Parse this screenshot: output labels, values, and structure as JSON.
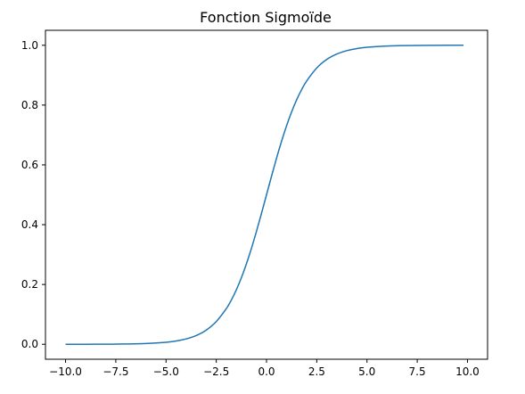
{
  "chart_data": {
    "type": "line",
    "title": "Fonction Sigmoïde",
    "xlabel": "",
    "ylabel": "",
    "xlim": [
      -11,
      11
    ],
    "ylim": [
      -0.05,
      1.05
    ],
    "grid": false,
    "x_ticks": [
      -10.0,
      -7.5,
      -5.0,
      -2.5,
      0.0,
      2.5,
      5.0,
      7.5,
      10.0
    ],
    "x_tick_labels": [
      "−10.0",
      "−7.5",
      "−5.0",
      "−2.5",
      "0.0",
      "2.5",
      "5.0",
      "7.5",
      "10.0"
    ],
    "y_ticks": [
      0.0,
      0.2,
      0.4,
      0.6,
      0.8,
      1.0
    ],
    "y_tick_labels": [
      "0.0",
      "0.2",
      "0.4",
      "0.6",
      "0.8",
      "1.0"
    ],
    "series": [
      {
        "color": "#1f77b4",
        "x": [
          -10,
          -9,
          -8,
          -7,
          -6,
          -5,
          -4.5,
          -4,
          -3.5,
          -3,
          -2.5,
          -2,
          -1.75,
          -1.5,
          -1.25,
          -1,
          -0.75,
          -0.5,
          -0.25,
          0,
          0.25,
          0.5,
          0.75,
          1,
          1.25,
          1.5,
          1.75,
          2,
          2.5,
          3,
          3.5,
          4,
          4.5,
          5,
          6,
          7,
          8,
          9,
          9.8
        ],
        "y": [
          0.0,
          0.0001,
          0.0003,
          0.0009,
          0.0025,
          0.0067,
          0.011,
          0.018,
          0.0293,
          0.0474,
          0.0759,
          0.1192,
          0.148,
          0.1824,
          0.2227,
          0.2689,
          0.3208,
          0.3775,
          0.4378,
          0.5,
          0.5622,
          0.6225,
          0.6792,
          0.7311,
          0.7773,
          0.8176,
          0.852,
          0.8808,
          0.9241,
          0.9526,
          0.9707,
          0.982,
          0.989,
          0.9933,
          0.9975,
          0.9991,
          0.9997,
          0.9999,
          0.9999
        ]
      }
    ]
  }
}
